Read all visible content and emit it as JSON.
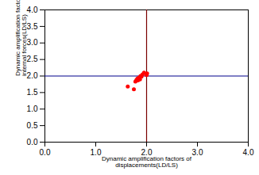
{
  "chart_data": {
    "type": "scatter",
    "xlabel": "Dynamic amplification factors of\ndisplacements(LD/LS)",
    "ylabel": "Dynamic amplification factors of\ninternal forces(LD/LS)",
    "x": [
      1.63,
      1.75,
      1.78,
      1.8,
      1.82,
      1.83,
      1.85,
      1.87,
      1.88,
      1.9,
      1.92,
      1.95,
      2.0,
      2.01
    ],
    "values": [
      1.68,
      1.6,
      1.83,
      1.88,
      1.92,
      1.87,
      1.95,
      1.9,
      2.0,
      1.98,
      2.05,
      2.1,
      2.03,
      2.08
    ],
    "color": "#ff0000",
    "marker": "circle",
    "hline": {
      "y": 2.0,
      "color": "#00008B"
    },
    "vline": {
      "x": 2.0,
      "color": "#7B0000"
    },
    "xlim": [
      0.0,
      4.0
    ],
    "ylim": [
      0.0,
      4.0
    ],
    "xticks": [
      {
        "value": 0,
        "label": "0.0"
      },
      {
        "value": 1,
        "label": "1.0"
      },
      {
        "value": 2,
        "label": "2.0"
      },
      {
        "value": 3,
        "label": "3.0"
      },
      {
        "value": 4,
        "label": "4.0"
      }
    ],
    "yticks": [
      {
        "value": 0,
        "label": "0.0"
      },
      0.5,
      {
        "value": 1,
        "label": "1.0"
      },
      1.5,
      {
        "value": 2,
        "label": "2.0"
      },
      2.5,
      {
        "value": 3,
        "label": "3.0"
      },
      3.5,
      {
        "value": 4,
        "label": "4.0"
      }
    ],
    "grid": false
  }
}
